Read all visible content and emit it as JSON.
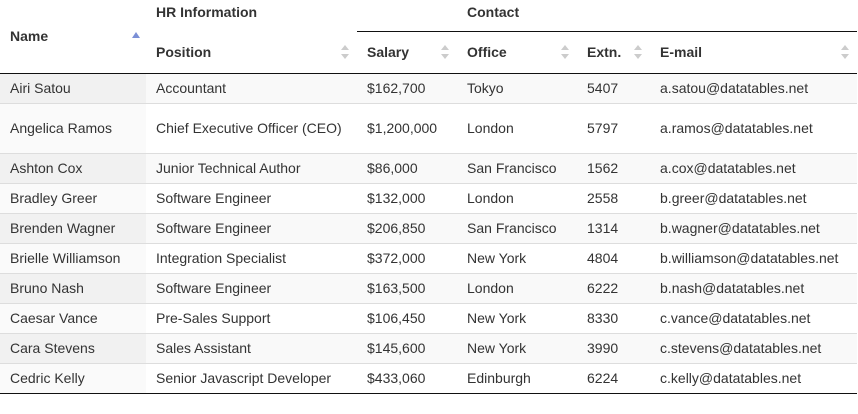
{
  "header": {
    "name_label": "Name",
    "group_hr": "HR Information",
    "group_contact": "Contact",
    "position_label": "Position",
    "salary_label": "Salary",
    "office_label": "Office",
    "extn_label": "Extn.",
    "email_label": "E-mail"
  },
  "rows": [
    {
      "name": "Airi Satou",
      "position": "Accountant",
      "salary": "$162,700",
      "office": "Tokyo",
      "extn": "5407",
      "email": "a.satou@datatables.net"
    },
    {
      "name": "Angelica Ramos",
      "position": "Chief Executive Officer (CEO)",
      "salary": "$1,200,000",
      "office": "London",
      "extn": "5797",
      "email": "a.ramos@datatables.net"
    },
    {
      "name": "Ashton Cox",
      "position": "Junior Technical Author",
      "salary": "$86,000",
      "office": "San Francisco",
      "extn": "1562",
      "email": "a.cox@datatables.net"
    },
    {
      "name": "Bradley Greer",
      "position": "Software Engineer",
      "salary": "$132,000",
      "office": "London",
      "extn": "2558",
      "email": "b.greer@datatables.net"
    },
    {
      "name": "Brenden Wagner",
      "position": "Software Engineer",
      "salary": "$206,850",
      "office": "San Francisco",
      "extn": "1314",
      "email": "b.wagner@datatables.net"
    },
    {
      "name": "Brielle Williamson",
      "position": "Integration Specialist",
      "salary": "$372,000",
      "office": "New York",
      "extn": "4804",
      "email": "b.williamson@datatables.net"
    },
    {
      "name": "Bruno Nash",
      "position": "Software Engineer",
      "salary": "$163,500",
      "office": "London",
      "extn": "6222",
      "email": "b.nash@datatables.net"
    },
    {
      "name": "Caesar Vance",
      "position": "Pre-Sales Support",
      "salary": "$106,450",
      "office": "New York",
      "extn": "8330",
      "email": "c.vance@datatables.net"
    },
    {
      "name": "Cara Stevens",
      "position": "Sales Assistant",
      "salary": "$145,600",
      "office": "New York",
      "extn": "3990",
      "email": "c.stevens@datatables.net"
    },
    {
      "name": "Cedric Kelly",
      "position": "Senior Javascript Developer",
      "salary": "$433,060",
      "office": "Edinburgh",
      "extn": "6224",
      "email": "c.kelly@datatables.net"
    }
  ]
}
